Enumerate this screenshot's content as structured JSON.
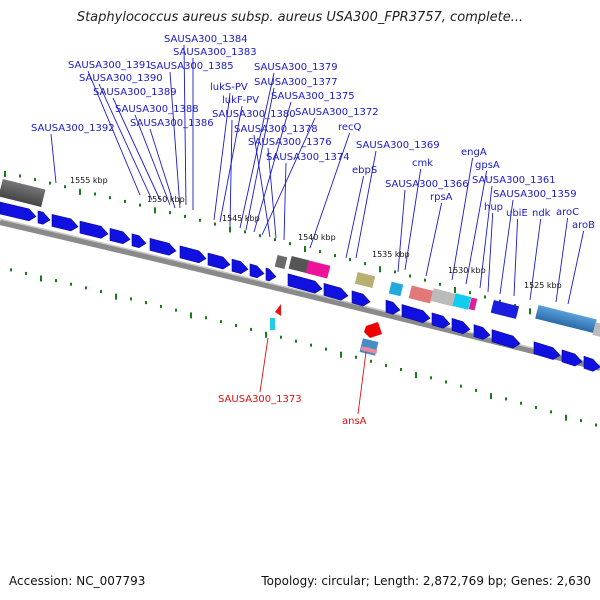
{
  "title": "Staphylococcus aureus subsp. aureus USA300_FPR3757, complete...",
  "footer": {
    "accession": "Accession: NC_007793",
    "summary": "Topology: circular; Length: 2,872,769 bp; Genes: 2,630"
  },
  "colors": {
    "forward_gene": "#1010e0",
    "label_blue": "#1a1acc",
    "label_red": "#dd1111",
    "backbone": "#888888",
    "tick": "#1a7a1a"
  },
  "ticks": [
    "1555 kbp",
    "1550 kbp",
    "1545 kbp",
    "1540 kbp",
    "1535 kbp",
    "1530 kbp",
    "1525 kbp"
  ],
  "gene_labels": [
    "SAUSA300_1384",
    "SAUSA300_1383",
    "SAUSA300_1391",
    "SAUSA300_1385",
    "SAUSA300_1390",
    "SAUSA300_1389",
    "SAUSA300_1388",
    "SAUSA300_1386",
    "SAUSA300_1392",
    "lukS-PV",
    "lukF-PV",
    "SAUSA300_1380",
    "SAUSA300_1379",
    "SAUSA300_1377",
    "SAUSA300_1375",
    "SAUSA300_1372",
    "SAUSA300_1378",
    "SAUSA300_1376",
    "SAUSA300_1374",
    "recQ",
    "SAUSA300_1369",
    "ebpS",
    "cmk",
    "SAUSA300_1366",
    "rpsA",
    "engA",
    "gpsA",
    "SAUSA300_1361",
    "hup",
    "SAUSA300_1359",
    "ubiE",
    "ndk",
    "aroC",
    "aroB"
  ],
  "red_labels": [
    "SAUSA300_1373",
    "ansA"
  ]
}
